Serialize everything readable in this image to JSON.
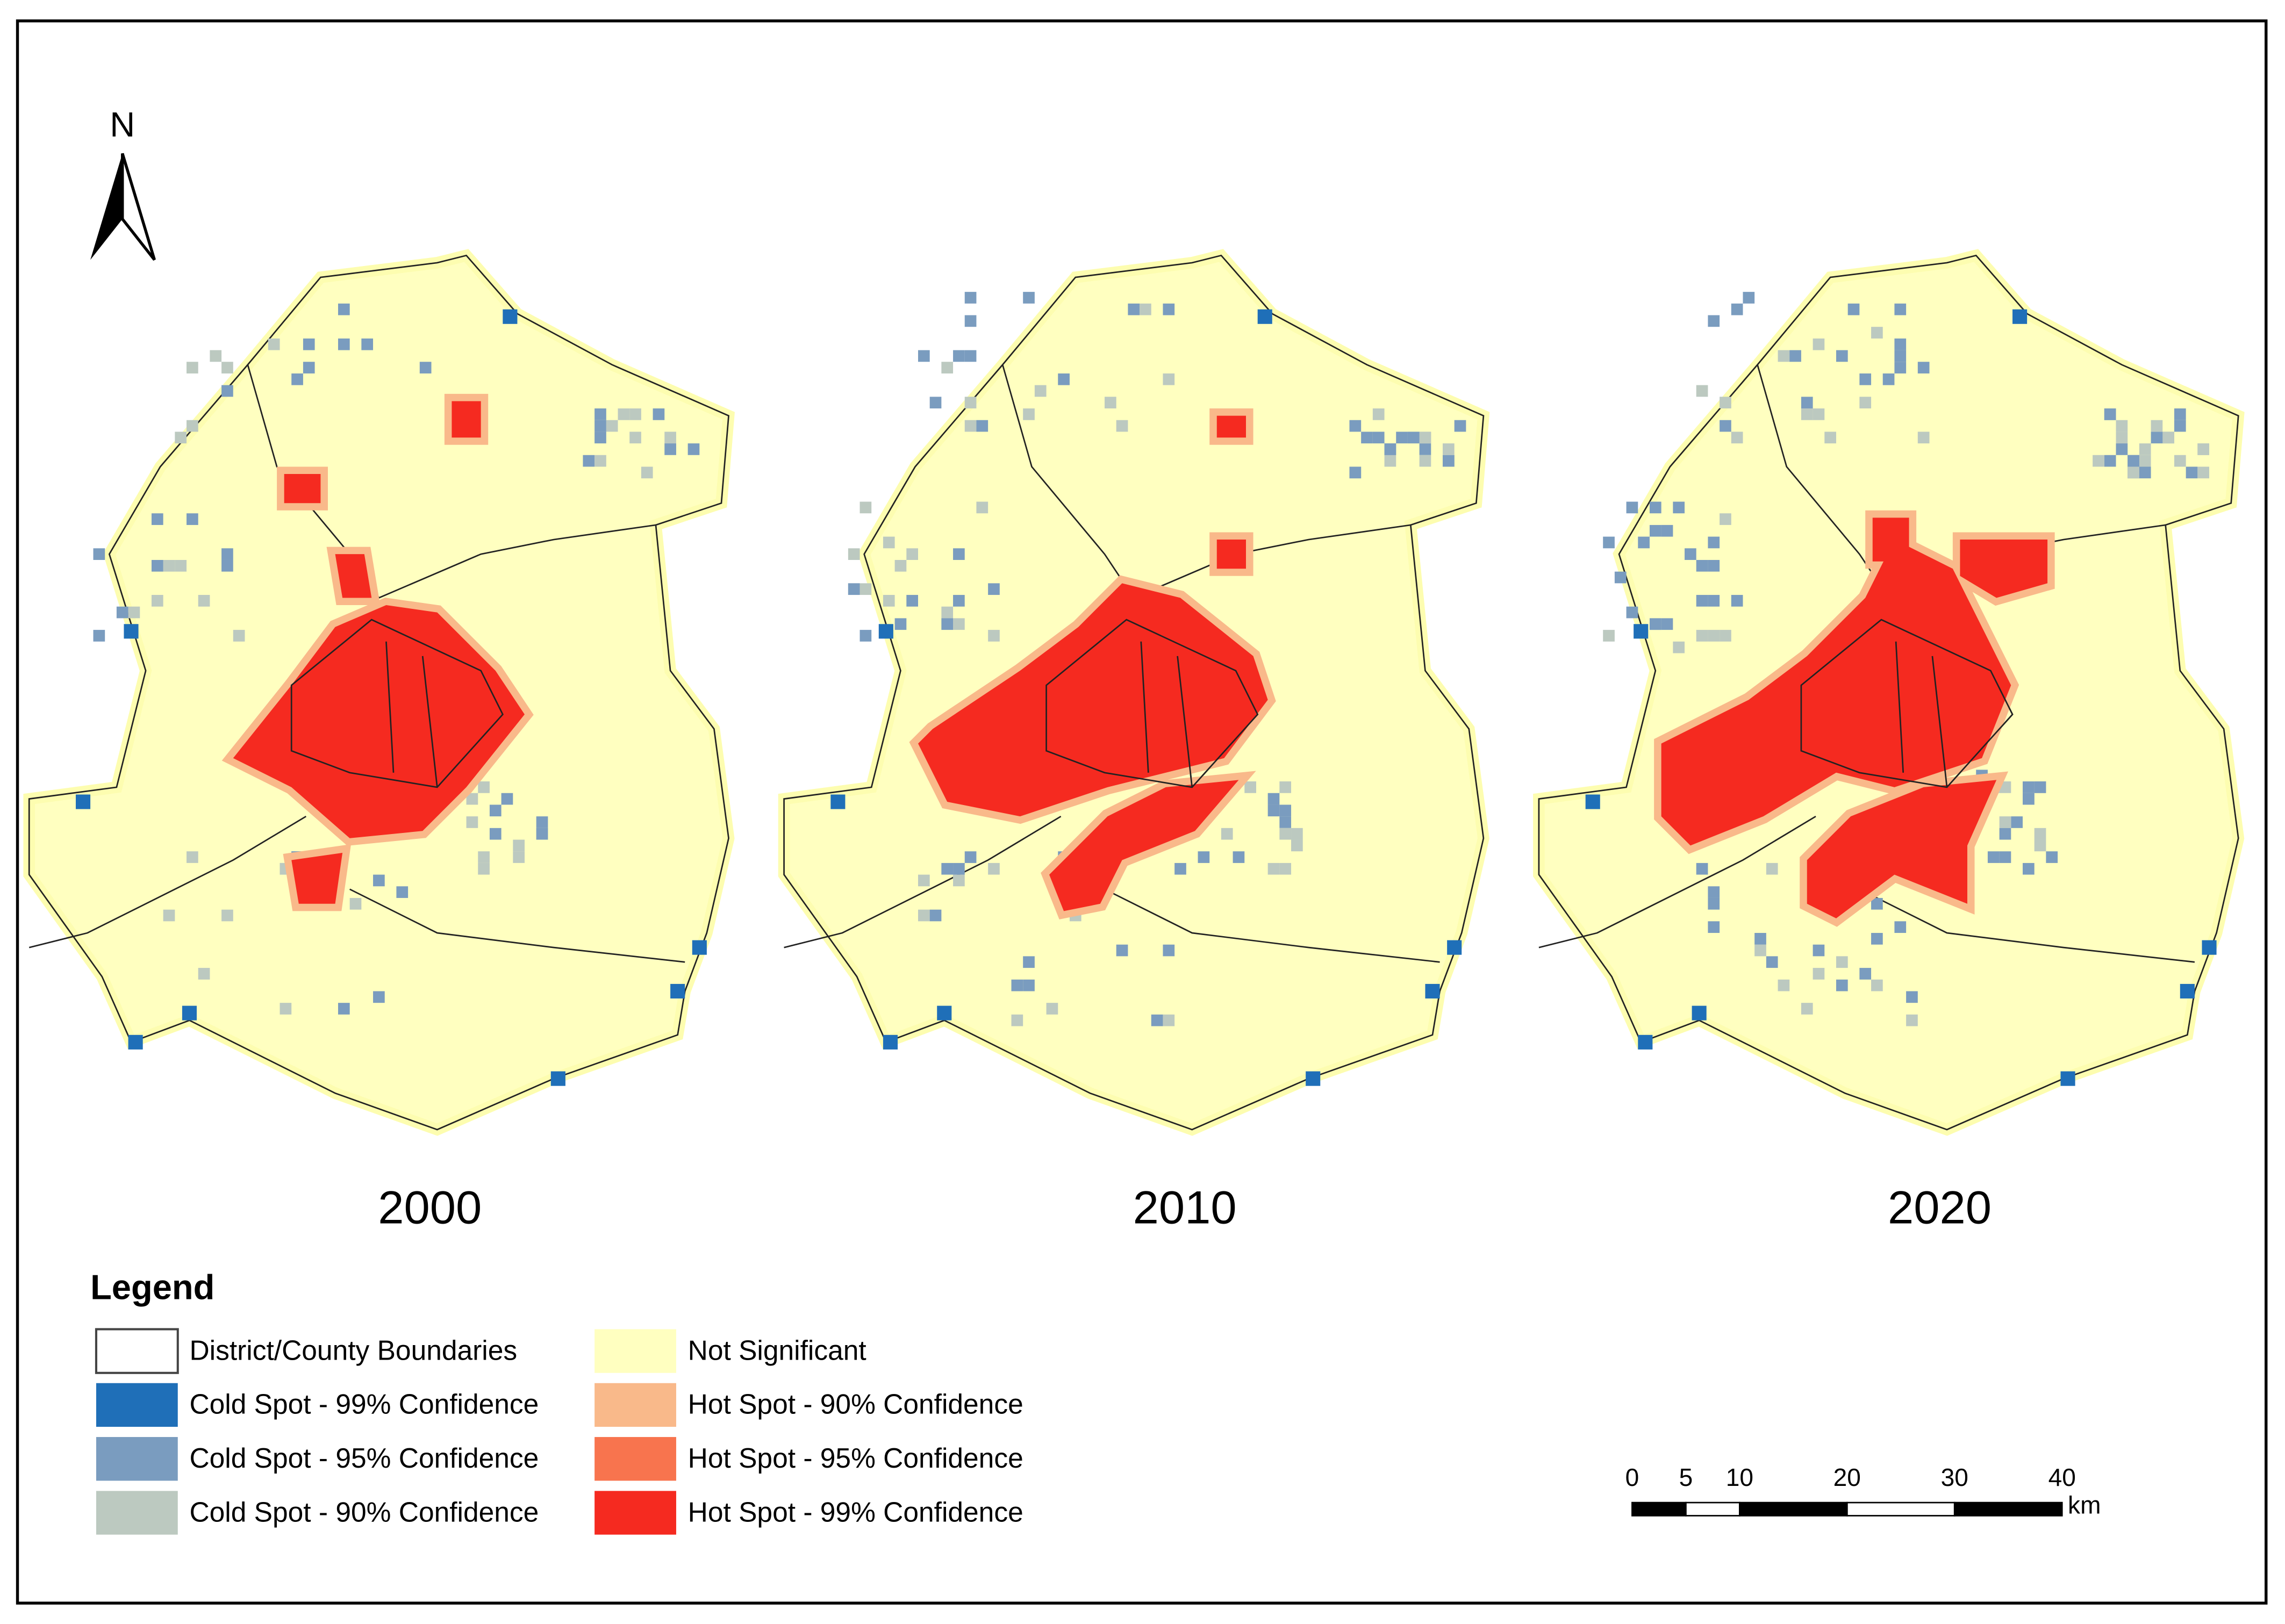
{
  "north": "N",
  "maps": [
    {
      "year": "2000"
    },
    {
      "year": "2010"
    },
    {
      "year": "2020"
    }
  ],
  "legend": {
    "title": "Legend",
    "items": [
      {
        "label": "District/County Boundaries",
        "color": "#ffffff"
      },
      {
        "label": "Cold Spot - 99% Confidence",
        "color": "#1f6fb8"
      },
      {
        "label": "Cold Spot - 95% Confidence",
        "color": "#7a9cbf"
      },
      {
        "label": "Cold Spot - 90% Confidence",
        "color": "#bcc9c0"
      },
      {
        "label": "Not Significant",
        "color": "#ffffc0"
      },
      {
        "label": "Hot Spot - 90% Confidence",
        "color": "#f9b98a"
      },
      {
        "label": "Hot Spot - 95% Confidence",
        "color": "#f8744e"
      },
      {
        "label": "Hot Spot - 99% Confidence",
        "color": "#f52a20"
      }
    ]
  },
  "scale_bar": {
    "ticks": [
      0,
      5,
      10,
      20,
      30,
      40
    ],
    "unit": "km"
  }
}
